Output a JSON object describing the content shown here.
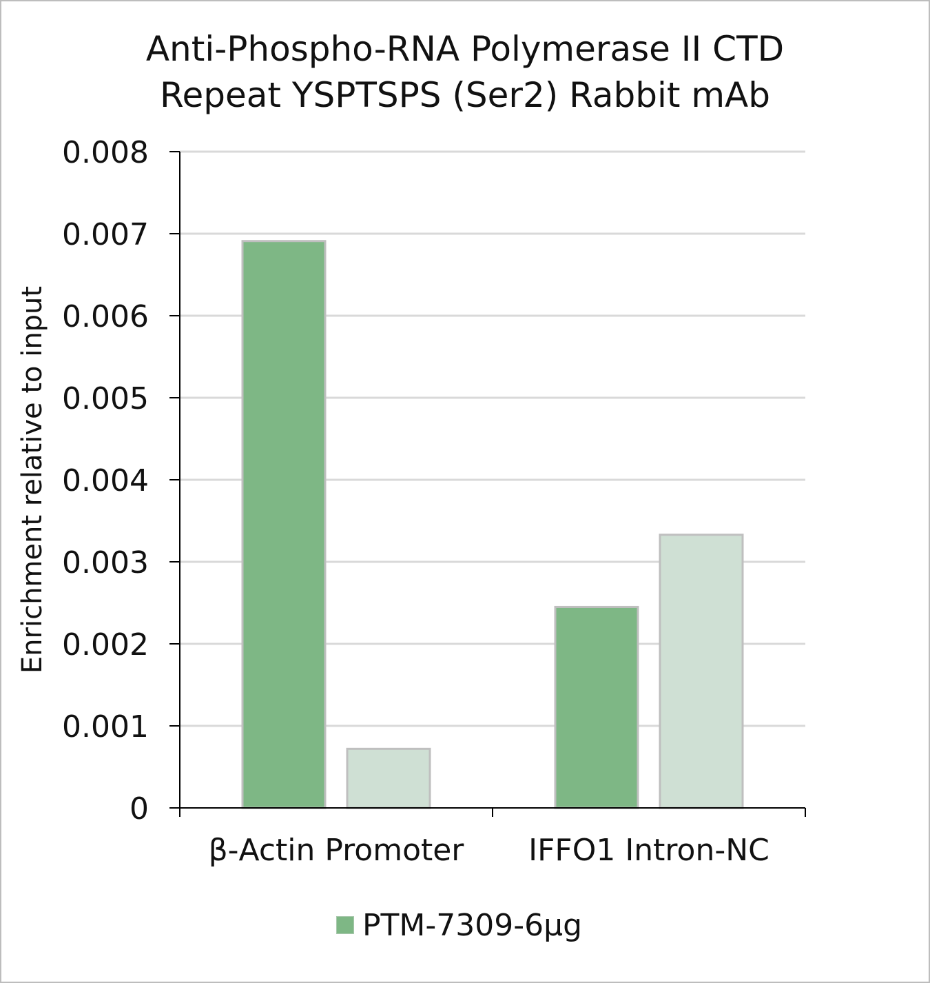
{
  "chart_data": {
    "type": "bar",
    "title_lines": [
      "Anti-Phospho-RNA Polymerase II CTD",
      "Repeat YSPTSPS (Ser2) Rabbit mAb"
    ],
    "xlabel": "",
    "ylabel": "Enrichment relative to input",
    "categories": [
      "β-Actin Promoter",
      "IFFO1 Intron-NC"
    ],
    "series": [
      {
        "name": "PTM-7309-6µg",
        "values": [
          0.00691,
          0.00245
        ],
        "color": "#7eb785"
      },
      {
        "values": [
          0.00072,
          0.00333
        ],
        "color": "#cfe0d4"
      }
    ],
    "ylim": [
      0,
      0.008
    ],
    "yticks": [
      "0",
      "0.001",
      "0.002",
      "0.003",
      "0.004",
      "0.005",
      "0.006",
      "0.007",
      "0.008"
    ],
    "grid": true,
    "legend_position": "bottom"
  }
}
